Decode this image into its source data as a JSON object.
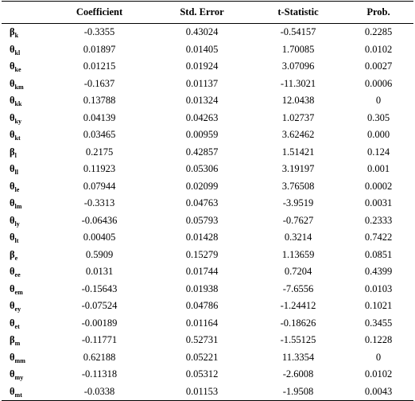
{
  "headers": [
    "",
    "Coefficient",
    "Std. Error",
    "t-Statistic",
    "Prob."
  ],
  "rows": [
    {
      "sym": "β",
      "sub": "k",
      "coef": "-0.3355",
      "se": "0.43024",
      "t": "-0.54157",
      "p": "0.2285"
    },
    {
      "sym": "θ",
      "sub": "kl",
      "coef": "0.01897",
      "se": "0.01405",
      "t": "1.70085",
      "p": "0.0102"
    },
    {
      "sym": "θ",
      "sub": "ke",
      "coef": "0.01215",
      "se": "0.01924",
      "t": "3.07096",
      "p": "0.0027"
    },
    {
      "sym": "θ",
      "sub": "km",
      "coef": "-0.1637",
      "se": "0.01137",
      "t": "-11.3021",
      "p": "0.0006"
    },
    {
      "sym": "θ",
      "sub": "kk",
      "coef": "0.13788",
      "se": "0.01324",
      "t": "12.0438",
      "p": "0"
    },
    {
      "sym": "θ",
      "sub": "ky",
      "coef": "0.04139",
      "se": "0.04263",
      "t": "1.02737",
      "p": "0.305"
    },
    {
      "sym": "θ",
      "sub": "kt",
      "coef": "0.03465",
      "se": "0.00959",
      "t": "3.62462",
      "p": "0.000"
    },
    {
      "sym": "β",
      "sub": "l",
      "coef": "0.2175",
      "se": "0.42857",
      "t": "1.51421",
      "p": "0.124"
    },
    {
      "sym": "θ",
      "sub": "ll",
      "coef": "0.11923",
      "se": "0.05306",
      "t": "3.19197",
      "p": "0.001"
    },
    {
      "sym": "θ",
      "sub": "le",
      "coef": "0.07944",
      "se": "0.02099",
      "t": "3.76508",
      "p": "0.0002"
    },
    {
      "sym": "θ",
      "sub": "lm",
      "coef": "-0.3313",
      "se": "0.04763",
      "t": "-3.9519",
      "p": "0.0031"
    },
    {
      "sym": "θ",
      "sub": "ly",
      "coef": "-0.06436",
      "se": "0.05793",
      "t": "-0.7627",
      "p": "0.2333"
    },
    {
      "sym": "θ",
      "sub": "lt",
      "coef": "0.00405",
      "se": "0.01428",
      "t": "0.3214",
      "p": "0.7422"
    },
    {
      "sym": "β",
      "sub": "e",
      "coef": "0.5909",
      "se": "0.15279",
      "t": "1.13659",
      "p": "0.0851"
    },
    {
      "sym": "θ",
      "sub": "ee",
      "coef": "0.0131",
      "se": "0.01744",
      "t": "0.7204",
      "p": "0.4399"
    },
    {
      "sym": "θ",
      "sub": "em",
      "coef": "-0.15643",
      "se": "0.01938",
      "t": "-7.6556",
      "p": "0.0103"
    },
    {
      "sym": "θ",
      "sub": "ey",
      "coef": "-0.07524",
      "se": "0.04786",
      "t": "-1.24412",
      "p": "0.1021"
    },
    {
      "sym": "θ",
      "sub": "et",
      "coef": "-0.00189",
      "se": "0.01164",
      "t": "-0.18626",
      "p": "0.3455"
    },
    {
      "sym": "β",
      "sub": "m",
      "coef": "-0.11771",
      "se": "0.52731",
      "t": "-1.55125",
      "p": "0.1228"
    },
    {
      "sym": "θ",
      "sub": "mm",
      "coef": "0.62188",
      "se": "0.05221",
      "t": "11.3354",
      "p": "0"
    },
    {
      "sym": "θ",
      "sub": "my",
      "coef": "-0.11318",
      "se": "0.05312",
      "t": "-2.6008",
      "p": "0.0102"
    },
    {
      "sym": "θ",
      "sub": "mt",
      "coef": "-0.0338",
      "se": "0.01153",
      "t": "-1.9508",
      "p": "0.0043"
    }
  ]
}
